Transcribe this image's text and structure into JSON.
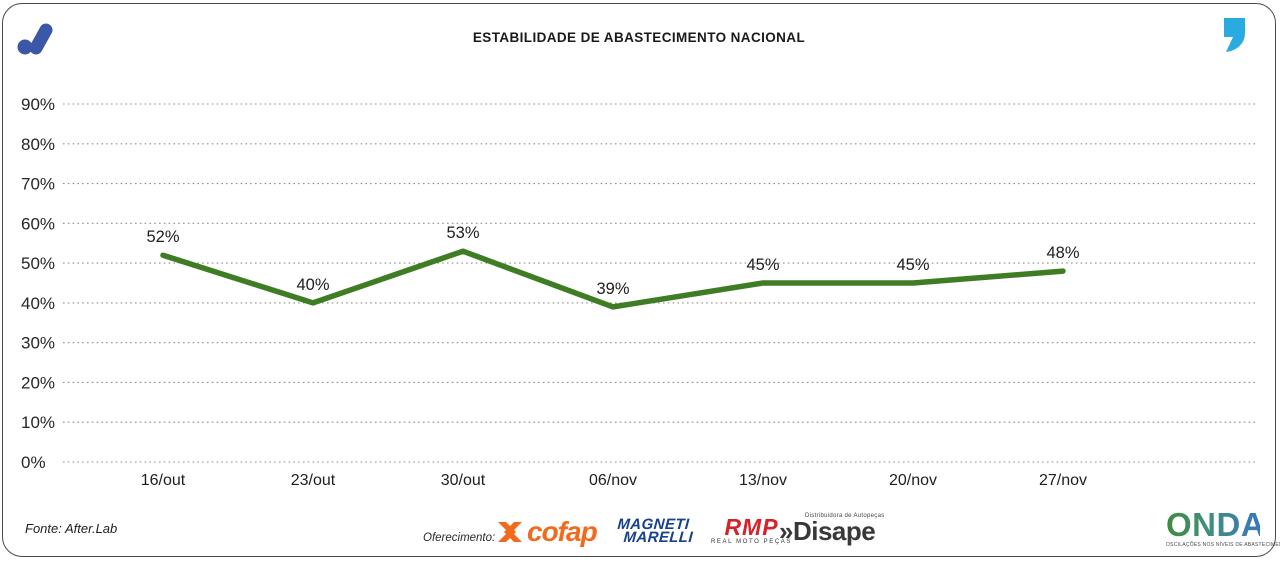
{
  "header": {
    "title": "ESTABILIDADE DE ABASTECIMENTO NACIONAL"
  },
  "branding": {
    "after_logo_color": "#3A57A8",
    "quote_mark_color": "#29ABE2"
  },
  "chart_data": {
    "type": "line",
    "title": "ESTABILIDADE DE ABASTECIMENTO NACIONAL",
    "categories": [
      "16/out",
      "23/out",
      "30/out",
      "06/nov",
      "13/nov",
      "20/nov",
      "27/nov"
    ],
    "values": [
      52,
      40,
      53,
      39,
      45,
      45,
      48
    ],
    "point_labels": [
      "52%",
      "40%",
      "53%",
      "39%",
      "45%",
      "45%",
      "48%"
    ],
    "y_ticks": [
      "90%",
      "80%",
      "70%",
      "60%",
      "50%",
      "40%",
      "30%",
      "20%",
      "10%",
      "0%"
    ],
    "ylim": [
      0,
      90
    ],
    "xlabel": "",
    "ylabel": "",
    "grid": "horizontal-dotted",
    "legend": "none",
    "line_color": "#3E7D23"
  },
  "footer": {
    "source": "Fonte: After.Lab",
    "sponsor_label": "Oferecimento:",
    "sponsors": [
      {
        "name": "cofap",
        "color": "#F26A1B"
      },
      {
        "line1": "MAGNETI",
        "line2": "MARELLI",
        "color": "#16418C"
      },
      {
        "name": "RMP",
        "subtitle": "REAL MOTO PEÇAS",
        "color": "#D6232A"
      },
      {
        "prefix": "»",
        "name": "Disape",
        "subtitle": "Distribuidora de Autopeças",
        "color": "#383838"
      }
    ],
    "onda": {
      "name": "ONDA",
      "caption": "OSCILAÇÕES NOS NÍVEIS DE ABASTECIMENTO E PREÇO"
    }
  }
}
